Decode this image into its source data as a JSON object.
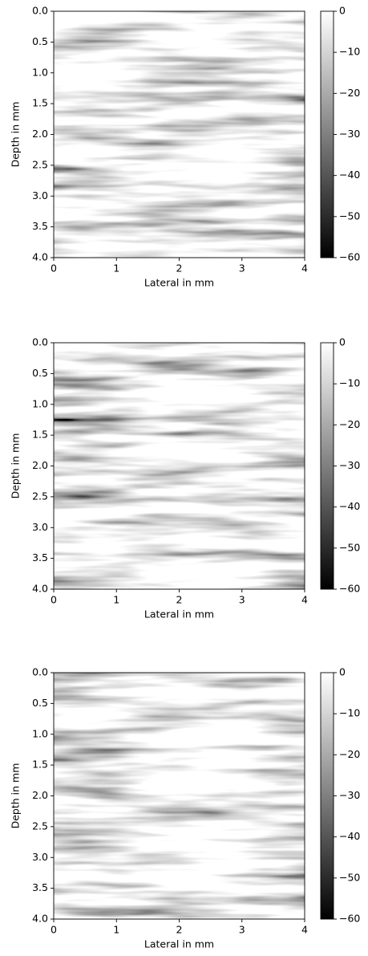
{
  "chart_data": [
    {
      "type": "image",
      "xlabel": "Lateral in mm",
      "ylabel": "Depth in mm",
      "cmap": "gray",
      "xlim": [
        0,
        4
      ],
      "xticks": [
        0,
        1,
        2,
        3,
        4
      ],
      "ylim": [
        4,
        0
      ],
      "yticks": [
        {
          "value": 0,
          "label": "0.0"
        },
        0.5,
        {
          "value": 1,
          "label": "1.0"
        },
        1.5,
        {
          "value": 2,
          "label": "2.0"
        },
        2.5,
        {
          "value": 3,
          "label": "3.0"
        },
        3.5,
        {
          "value": 4,
          "label": "4.0"
        }
      ],
      "clim": [
        -60,
        0
      ],
      "cticks": [
        0,
        {
          "value": -10,
          "label": "−10"
        },
        {
          "value": -20,
          "label": "−20"
        },
        {
          "value": -30,
          "label": "−30"
        },
        {
          "value": -40,
          "label": "−40"
        },
        {
          "value": -50,
          "label": "−50"
        },
        {
          "value": -60,
          "label": "−60"
        }
      ]
    },
    {
      "type": "image",
      "xlabel": "Lateral in mm",
      "ylabel": "Depth in mm",
      "cmap": "gray",
      "xlim": [
        0,
        4
      ],
      "xticks": [
        0,
        1,
        2,
        3,
        4
      ],
      "ylim": [
        4,
        0
      ],
      "yticks": [
        {
          "value": 0,
          "label": "0.0"
        },
        0.5,
        {
          "value": 1,
          "label": "1.0"
        },
        1.5,
        {
          "value": 2,
          "label": "2.0"
        },
        2.5,
        {
          "value": 3,
          "label": "3.0"
        },
        3.5,
        {
          "value": 4,
          "label": "4.0"
        }
      ],
      "clim": [
        -60,
        0
      ],
      "cticks": [
        0,
        {
          "value": -10,
          "label": "−10"
        },
        {
          "value": -20,
          "label": "−20"
        },
        {
          "value": -30,
          "label": "−30"
        },
        {
          "value": -40,
          "label": "−40"
        },
        {
          "value": -50,
          "label": "−50"
        },
        {
          "value": -60,
          "label": "−60"
        }
      ]
    },
    {
      "type": "image",
      "xlabel": "Lateral in mm",
      "ylabel": "Depth in mm",
      "cmap": "gray",
      "xlim": [
        0,
        4
      ],
      "xticks": [
        0,
        1,
        2,
        3,
        4
      ],
      "ylim": [
        4,
        0
      ],
      "yticks": [
        {
          "value": 0,
          "label": "0.0"
        },
        0.5,
        {
          "value": 1,
          "label": "1.0"
        },
        1.5,
        {
          "value": 2,
          "label": "2.0"
        },
        2.5,
        {
          "value": 3,
          "label": "3.0"
        },
        3.5,
        {
          "value": 4,
          "label": "4.0"
        }
      ],
      "clim": [
        -60,
        0
      ],
      "cticks": [
        0,
        {
          "value": -10,
          "label": "−10"
        },
        {
          "value": -20,
          "label": "−20"
        },
        {
          "value": -30,
          "label": "−30"
        },
        {
          "value": -40,
          "label": "−40"
        },
        {
          "value": -50,
          "label": "−50"
        },
        {
          "value": -60,
          "label": "−60"
        }
      ]
    }
  ]
}
